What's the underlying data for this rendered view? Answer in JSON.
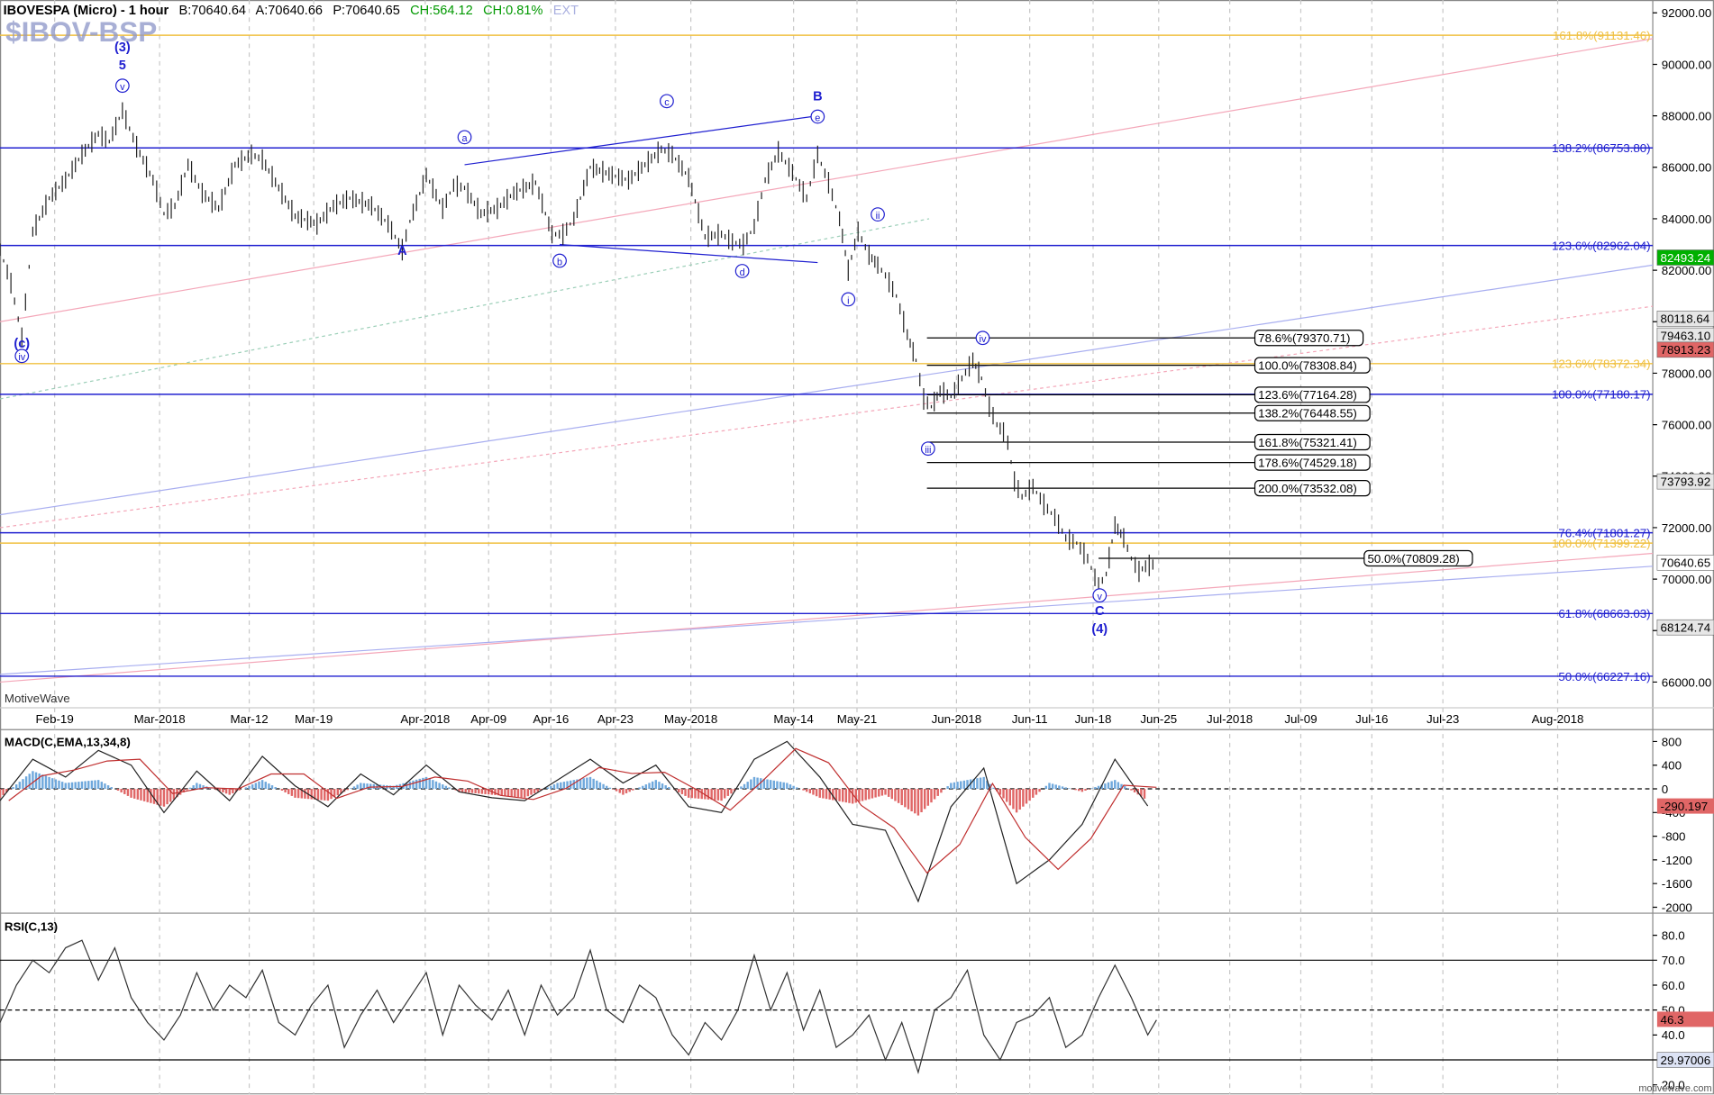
{
  "header": {
    "instrument": "IBOVESPA (Micro) - 1 hour",
    "bid": "B:70640.64",
    "ask": "A:70640.66",
    "price": "P:70640.65",
    "change": "CH:564.12",
    "change_pct": "CH:0.81%",
    "ext": "EXT",
    "symbol": "$IBOV-BSP",
    "brand": "MotiveWave",
    "watermark": "motivewave.com"
  },
  "colors": {
    "up": "#009900",
    "ext": "#aab0e0",
    "blue": "#2020d0",
    "gold": "#f0c040",
    "price": "#222222",
    "macd_pos": "#6fa8dc",
    "macd_neg": "#e06666",
    "pink": "#f4a7b9"
  },
  "chart_data": [
    {
      "type": "line",
      "name": "price",
      "ylim": [
        65000,
        92500
      ],
      "y_ticks": [
        "92000.00",
        "90000.00",
        "88000.00",
        "86000.00",
        "84000.00",
        "82000.00",
        "80000.00",
        "78000.00",
        "76000.00",
        "74000.00",
        "72000.00",
        "70000.00",
        "68000.00",
        "66000.00"
      ],
      "x_ticks": [
        "Feb-19",
        "Mar-2018",
        "Mar-12",
        "Mar-19",
        "Apr-2018",
        "Apr-09",
        "Apr-16",
        "Apr-23",
        "May-2018",
        "May-14",
        "May-21",
        "Jun-2018",
        "Jun-11",
        "Jun-18",
        "Jun-25",
        "Jul-2018",
        "Jul-09",
        "Jul-16",
        "Jul-23",
        "Aug-2018"
      ],
      "x_tick_pos": [
        50,
        146,
        228,
        287,
        389,
        447,
        504,
        563,
        632,
        726,
        784,
        875,
        942,
        1000,
        1060,
        1125,
        1190,
        1255,
        1320,
        1425
      ],
      "series": [
        {
          "values_x": [
            0,
            10,
            20,
            30,
            45,
            60,
            75,
            90,
            100,
            112,
            125,
            140,
            150,
            160,
            172,
            185,
            200,
            215,
            230,
            240,
            255,
            270,
            290,
            305,
            320,
            340,
            355,
            368,
            375,
            390,
            405,
            415,
            425,
            440,
            455,
            470,
            490,
            505,
            515,
            525,
            540,
            560,
            575,
            590,
            605,
            615,
            630,
            645,
            660,
            670,
            680,
            690,
            700,
            712,
            725,
            738,
            748,
            758,
            768,
            776,
            785,
            795,
            803,
            810,
            820,
            830,
            838,
            845,
            852,
            860,
            870,
            880,
            890,
            898,
            905,
            912,
            918,
            922,
            928,
            935,
            945,
            955,
            965,
            975,
            985,
            995,
            1005,
            1012,
            1020,
            1028,
            1035,
            1042,
            1048,
            1058
          ],
          "values": [
            82800,
            81500,
            79400,
            83500,
            84800,
            85500,
            86500,
            87300,
            87000,
            88200,
            86800,
            85500,
            84200,
            84500,
            86100,
            85000,
            84400,
            86100,
            86500,
            86300,
            85200,
            84100,
            83800,
            84500,
            84800,
            84500,
            83800,
            82800,
            83900,
            85700,
            84400,
            85300,
            85200,
            84200,
            84400,
            85000,
            85400,
            83400,
            83400,
            84000,
            86000,
            85700,
            85500,
            86100,
            86700,
            86500,
            85600,
            83300,
            83400,
            83100,
            83000,
            83700,
            85500,
            86600,
            85800,
            84800,
            86500,
            85400,
            84000,
            82000,
            83500,
            82600,
            82200,
            81800,
            81000,
            79500,
            78500,
            77000,
            76700,
            77300,
            77100,
            77800,
            78500,
            77800,
            76700,
            76000,
            75700,
            75300,
            73800,
            73200,
            73600,
            72900,
            72400,
            71600,
            71400,
            70800,
            69700,
            70200,
            72100,
            71600,
            70800,
            70300,
            70500,
            70600
          ]
        }
      ],
      "horizontal_levels": [
        {
          "label": "161.8%(91131.46)",
          "value": 91131.46,
          "color": "gold"
        },
        {
          "label": "138.2%(86753.80)",
          "value": 86753.8,
          "color": "blue"
        },
        {
          "label": "123.6%(82962.04)",
          "value": 82962.04,
          "color": "blue"
        },
        {
          "label": "123.6%(78372.34)",
          "value": 78372.34,
          "color": "gold"
        },
        {
          "label": "100.0%(77180.17)",
          "value": 77180.17,
          "color": "blue"
        },
        {
          "label": "76.4%(71801.27)",
          "value": 71801.27,
          "color": "blue"
        },
        {
          "label": "100.0%(71399.22)",
          "value": 71399.22,
          "color": "gold"
        },
        {
          "label": "61.8%(68663.03)",
          "value": 68663.03,
          "color": "blue"
        },
        {
          "label": "50.0%(66227.16)",
          "value": 66227.16,
          "color": "blue"
        }
      ],
      "fib_boxes": [
        {
          "label": "78.6%(79370.71)",
          "value": 79370.71
        },
        {
          "label": "100.0%(78308.84)",
          "value": 78308.84
        },
        {
          "label": "123.6%(77164.28)",
          "value": 77164.28
        },
        {
          "label": "138.2%(76448.55)",
          "value": 76448.55
        },
        {
          "label": "161.8%(75321.41)",
          "value": 75321.41
        },
        {
          "label": "178.6%(74529.18)",
          "value": 74529.18
        },
        {
          "label": "200.0%(73532.08)",
          "value": 73532.08
        },
        {
          "label": "50.0%(70809.28)",
          "value": 70809.28
        }
      ],
      "price_tags": [
        {
          "label": "82493.24",
          "value": 82493.24,
          "bg": "#00b000",
          "fg": "#ffffff"
        },
        {
          "label": "80118.64",
          "value": 80118.64,
          "bg": "#e6e6e6",
          "fg": "#000000"
        },
        {
          "label": "79463.10",
          "value": 79463.1,
          "bg": "#e6e6e6",
          "fg": "#000000"
        },
        {
          "label": "78913.23",
          "value": 78913.23,
          "bg": "#e06666",
          "fg": "#000000"
        },
        {
          "label": "73793.92",
          "value": 73793.92,
          "bg": "#e6e6e6",
          "fg": "#000000"
        },
        {
          "label": "70640.65",
          "value": 70640.65,
          "bg": "#ffffff",
          "fg": "#000000"
        },
        {
          "label": "68124.74",
          "value": 68124.74,
          "bg": "#e6e6e6",
          "fg": "#000000"
        }
      ],
      "wave_labels": [
        {
          "text": "(3)",
          "x": 112,
          "y": 90500,
          "circle": false
        },
        {
          "text": "5",
          "x": 112,
          "y": 89800,
          "circle": false
        },
        {
          "text": "v",
          "x": 112,
          "y": 89000,
          "circle": true
        },
        {
          "text": "(c)",
          "x": 20,
          "y": 79000,
          "circle": false
        },
        {
          "text": "iv",
          "x": 20,
          "y": 78500,
          "circle": true
        },
        {
          "text": "A",
          "x": 368,
          "y": 82600,
          "circle": false
        },
        {
          "text": "a",
          "x": 425,
          "y": 87000,
          "circle": true
        },
        {
          "text": "b",
          "x": 512,
          "y": 82200,
          "circle": true
        },
        {
          "text": "c",
          "x": 610,
          "y": 88400,
          "circle": true
        },
        {
          "text": "d",
          "x": 679,
          "y": 81800,
          "circle": true
        },
        {
          "text": "B",
          "x": 748,
          "y": 88600,
          "circle": false
        },
        {
          "text": "e",
          "x": 748,
          "y": 87800,
          "circle": true
        },
        {
          "text": "i",
          "x": 776,
          "y": 80700,
          "circle": true
        },
        {
          "text": "ii",
          "x": 803,
          "y": 84000,
          "circle": true
        },
        {
          "text": "iii",
          "x": 849,
          "y": 74900,
          "circle": true
        },
        {
          "text": "iv",
          "x": 899,
          "y": 79200,
          "circle": true
        },
        {
          "text": "v",
          "x": 1006,
          "y": 69200,
          "circle": true
        },
        {
          "text": "C",
          "x": 1006,
          "y": 68600,
          "circle": false
        },
        {
          "text": "(4)",
          "x": 1006,
          "y": 67900,
          "circle": false
        }
      ]
    },
    {
      "type": "bar",
      "name": "MACD(C,EMA,13,34,8)",
      "ylim": [
        -2100,
        1000
      ],
      "y_ticks": [
        "800",
        "400",
        "0",
        "-400",
        "-800",
        "-1200",
        "-1600",
        "-2000"
      ],
      "last_value": "-290.197",
      "x": [
        0,
        30,
        60,
        90,
        120,
        150,
        180,
        210,
        240,
        270,
        300,
        330,
        360,
        390,
        420,
        450,
        480,
        510,
        540,
        570,
        600,
        630,
        660,
        690,
        720,
        750,
        780,
        810,
        840,
        870,
        900,
        930,
        960,
        990,
        1020,
        1050
      ],
      "values": [
        -150,
        300,
        100,
        150,
        -150,
        -300,
        100,
        -100,
        150,
        -150,
        -200,
        100,
        50,
        200,
        -50,
        -100,
        -150,
        100,
        200,
        -100,
        150,
        -150,
        -200,
        200,
        100,
        -150,
        -250,
        -100,
        -450,
        100,
        200,
        -400,
        100,
        -50,
        150,
        -200
      ],
      "macd_line": [
        -200,
        500,
        200,
        650,
        400,
        -400,
        300,
        -200,
        550,
        50,
        -300,
        250,
        -100,
        400,
        -50,
        -150,
        -200,
        150,
        500,
        100,
        400,
        -300,
        -400,
        500,
        800,
        200,
        -600,
        -700,
        -1900,
        -300,
        350,
        -1600,
        -1200,
        -600,
        500,
        -290
      ]
    },
    {
      "type": "line",
      "name": "RSI(C,13)",
      "ylim": [
        17,
        88
      ],
      "y_ticks": [
        "80.0",
        "70.0",
        "60.0",
        "50.0",
        "40.0",
        "30.0",
        "20.0"
      ],
      "last_value": "46.3",
      "last_signal": "29.97006",
      "levels": [
        70,
        50,
        30
      ],
      "x": [
        0,
        15,
        30,
        45,
        60,
        75,
        90,
        105,
        120,
        135,
        150,
        165,
        180,
        195,
        210,
        225,
        240,
        255,
        270,
        285,
        300,
        315,
        330,
        345,
        360,
        375,
        390,
        405,
        420,
        435,
        450,
        465,
        480,
        495,
        510,
        525,
        540,
        555,
        570,
        585,
        600,
        615,
        630,
        645,
        660,
        675,
        690,
        705,
        720,
        735,
        750,
        765,
        780,
        795,
        810,
        825,
        840,
        855,
        870,
        885,
        900,
        915,
        930,
        945,
        960,
        975,
        990,
        1005,
        1020,
        1035,
        1050,
        1058
      ],
      "values": [
        45,
        60,
        70,
        65,
        75,
        78,
        62,
        75,
        55,
        45,
        38,
        48,
        65,
        50,
        60,
        55,
        66,
        45,
        40,
        52,
        60,
        35,
        48,
        58,
        45,
        55,
        65,
        40,
        60,
        52,
        46,
        58,
        40,
        60,
        48,
        55,
        74,
        50,
        45,
        60,
        55,
        40,
        32,
        45,
        38,
        50,
        72,
        50,
        65,
        42,
        58,
        35,
        40,
        48,
        30,
        45,
        25,
        50,
        55,
        66,
        40,
        30,
        45,
        48,
        55,
        35,
        40,
        55,
        68,
        55,
        40,
        46
      ]
    }
  ]
}
